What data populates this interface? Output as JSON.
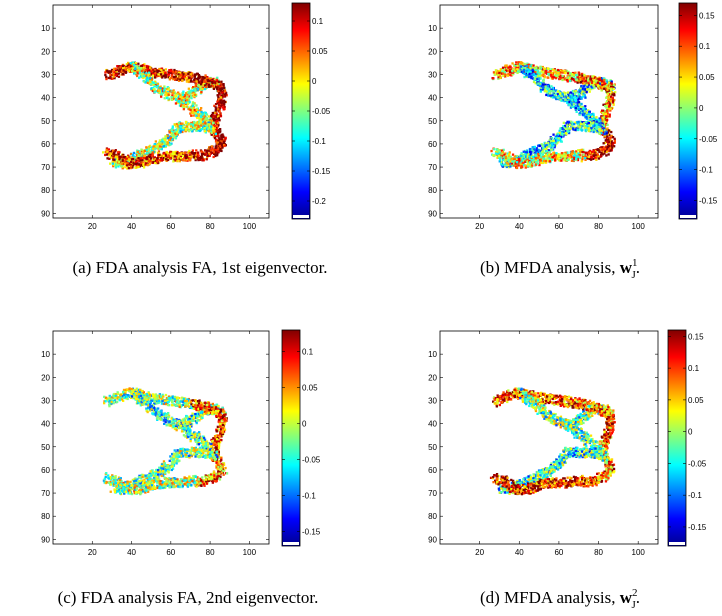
{
  "chart_data": [
    {
      "type": "heatmap",
      "caption": {
        "label": "(a)",
        "text": "FDA analysis FA, 1st eigenvector."
      },
      "xticks": [
        20,
        40,
        60,
        80,
        100
      ],
      "yticks": [
        10,
        20,
        30,
        40,
        50,
        60,
        70,
        80,
        90
      ],
      "xlim": [
        0,
        110
      ],
      "ylim": [
        92,
        0
      ],
      "colorbar": {
        "ticks": [
          0.1,
          0.05,
          0,
          -0.05,
          -0.1,
          -0.15,
          -0.2
        ],
        "range": [
          -0.23,
          0.13
        ]
      },
      "values": {
        "upper_left_tip": 0.09,
        "upper_arm": -0.02,
        "right_junction": 0.11,
        "lower_arm": -0.04,
        "lower_left_tip": 0.08,
        "right_lower_bulge": 0.12
      }
    },
    {
      "type": "heatmap",
      "caption": {
        "label": "(b)",
        "text": "MFDA analysis, ",
        "bold": "w",
        "sup": "1",
        "sub": "J",
        "tail": "."
      },
      "xticks": [
        20,
        40,
        60,
        80,
        100
      ],
      "yticks": [
        10,
        20,
        30,
        40,
        50,
        60,
        70,
        80,
        90
      ],
      "xlim": [
        0,
        110
      ],
      "ylim": [
        92,
        0
      ],
      "colorbar": {
        "ticks": [
          0.15,
          0.1,
          0.05,
          0,
          -0.05,
          -0.1,
          -0.15
        ],
        "range": [
          -0.18,
          0.17
        ]
      },
      "values": {
        "upper_left_tip": 0.06,
        "upper_arm": -0.06,
        "right_junction": 0.09,
        "lower_arm": -0.05,
        "lower_left_tip": 0.04,
        "right_lower_bulge": 0.14
      }
    },
    {
      "type": "heatmap",
      "caption": {
        "label": "(c)",
        "text": "FDA analysis FA, 2nd eigenvector."
      },
      "xticks": [
        20,
        40,
        60,
        80,
        100
      ],
      "yticks": [
        10,
        20,
        30,
        40,
        50,
        60,
        70,
        80,
        90
      ],
      "xlim": [
        0,
        110
      ],
      "ylim": [
        92,
        0
      ],
      "colorbar": {
        "ticks": [
          0.1,
          0.05,
          0,
          -0.05,
          -0.1,
          -0.15
        ],
        "range": [
          -0.17,
          0.13
        ]
      },
      "values": {
        "upper_left_tip": -0.02,
        "upper_arm": -0.04,
        "right_junction": 0.08,
        "lower_arm": -0.03,
        "lower_left_tip": -0.01,
        "right_lower_bulge": 0.06
      }
    },
    {
      "type": "heatmap",
      "caption": {
        "label": "(d)",
        "text": "MFDA analysis, ",
        "bold": "w",
        "sup": "2",
        "sub": "J",
        "tail": "."
      },
      "xticks": [
        20,
        40,
        60,
        80,
        100
      ],
      "yticks": [
        10,
        20,
        30,
        40,
        50,
        60,
        70,
        80,
        90
      ],
      "xlim": [
        0,
        110
      ],
      "ylim": [
        92,
        0
      ],
      "colorbar": {
        "ticks": [
          0.15,
          0.1,
          0.05,
          0,
          -0.05,
          -0.1,
          -0.15
        ],
        "range": [
          -0.18,
          0.16
        ]
      },
      "values": {
        "upper_left_tip": 0.1,
        "upper_arm": -0.02,
        "right_junction": 0.09,
        "lower_arm": -0.04,
        "lower_left_tip": 0.12,
        "right_lower_bulge": 0.08
      }
    }
  ]
}
